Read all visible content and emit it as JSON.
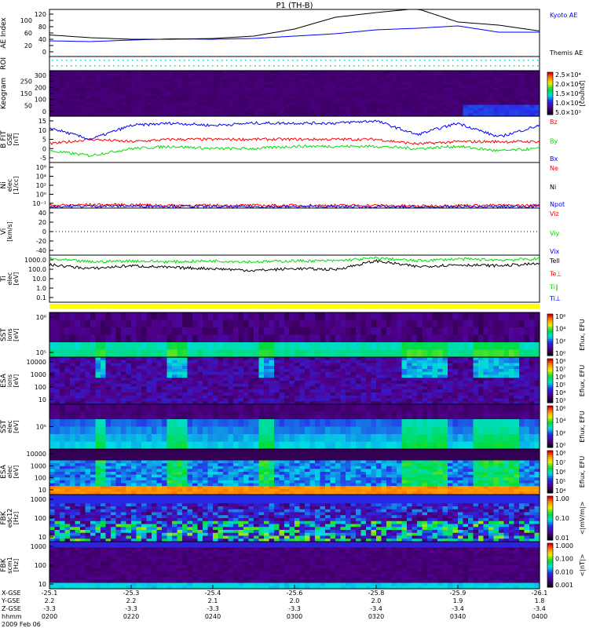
{
  "title": "P1 (TH-B)",
  "date": "2009 Feb 06",
  "colors": {
    "blue": "#0000ff",
    "red": "#ff0000",
    "green": "#00dd00",
    "black": "#000000",
    "cyan": "#00cccc",
    "yellow": "#ffff00"
  },
  "x_axis": {
    "rows": [
      {
        "label": "X-GSE",
        "values": [
          "-25.1",
          "-25.3",
          "-25.4",
          "-25.6",
          "-25.8",
          "-25.9",
          "-26.1"
        ]
      },
      {
        "label": "Y-GSE",
        "values": [
          "2.2",
          "2.2",
          "2.1",
          "2.0",
          "2.0",
          "1.9",
          "1.8"
        ]
      },
      {
        "label": "Z-GSE",
        "values": [
          "-3.3",
          "-3.3",
          "-3.3",
          "-3.3",
          "-3.4",
          "-3.4",
          "-3.4"
        ]
      },
      {
        "label": "hhmm",
        "values": [
          "0200",
          "0220",
          "0240",
          "0300",
          "0320",
          "0340",
          "0400"
        ]
      }
    ]
  },
  "chart_data": [
    {
      "type": "line",
      "id": "ae",
      "ylabel": [
        "AE Index"
      ],
      "ylim": [
        0,
        120
      ],
      "yticks": [
        "0",
        "20",
        "40",
        "60",
        "80",
        "100",
        "120"
      ],
      "x_minutes": [
        0,
        10,
        20,
        30,
        40,
        50,
        60,
        70,
        80,
        90,
        100,
        110,
        120
      ],
      "series": [
        {
          "name": "Kyoto AE",
          "color": "#0000ff",
          "values": [
            40,
            38,
            42,
            45,
            44,
            46,
            52,
            58,
            68,
            72,
            78,
            62,
            62
          ]
        },
        {
          "name": "Themis AE",
          "color": "#000000",
          "values": [
            55,
            48,
            44,
            44,
            46,
            52,
            70,
            100,
            112,
            122,
            88,
            80,
            65
          ]
        }
      ]
    },
    {
      "type": "line",
      "id": "roi",
      "ylabel": [
        "ROI"
      ],
      "ylim": [
        0,
        2
      ],
      "yticks": [],
      "series": []
    },
    {
      "type": "heatmap",
      "id": "keogram",
      "ylabel": [
        "Keogram"
      ],
      "ylim": [
        0,
        300
      ],
      "yticks": [
        "0",
        "50",
        "100",
        "150",
        "200",
        "250",
        "300"
      ],
      "colorbar": {
        "labels": [
          "2.5×10⁴",
          "2.0×10⁴",
          "1.5×10⁴",
          "1.0×10⁴",
          "5.0×10³"
        ],
        "title": "[counts]"
      }
    },
    {
      "type": "line",
      "id": "bfit",
      "ylabel": [
        "B FIT",
        "GSE",
        "[nT]"
      ],
      "ylim": [
        -5,
        15
      ],
      "yticks": [
        "-5",
        "0",
        "5",
        "10",
        "15"
      ],
      "x_minutes": [
        0,
        10,
        20,
        30,
        40,
        50,
        60,
        70,
        80,
        90,
        100,
        110,
        120
      ],
      "series": [
        {
          "name": "Bz",
          "color": "#ff0000",
          "values": [
            3,
            5,
            4,
            5,
            5,
            5,
            5,
            5,
            5,
            3,
            4,
            4,
            4
          ]
        },
        {
          "name": "By",
          "color": "#00dd00",
          "values": [
            0,
            -2,
            1,
            2,
            1,
            1,
            2,
            2,
            2,
            1,
            2,
            0,
            1
          ]
        },
        {
          "name": "Bx",
          "color": "#0000ff",
          "values": [
            10,
            5,
            11,
            12,
            11,
            12,
            12,
            12,
            13,
            7,
            12,
            6,
            11
          ]
        }
      ]
    },
    {
      "type": "line",
      "id": "ni",
      "ylabel": [
        "Ni",
        "elec",
        "[1/cc]"
      ],
      "ylim": [
        -1,
        6
      ],
      "yscale": "log",
      "yticks": [
        "10⁻¹",
        "10⁰",
        "10²",
        "10⁴",
        "10⁶"
      ],
      "x_minutes": [
        0,
        10,
        20,
        30,
        40,
        50,
        60,
        70,
        80,
        90,
        100,
        110,
        120
      ],
      "series": [
        {
          "name": "Ne",
          "color": "#ff0000",
          "values": [
            -0.6,
            -0.5,
            -0.5,
            -0.6,
            -0.6,
            -0.6,
            -0.6,
            -0.6,
            -0.6,
            -0.7,
            -0.6,
            -0.6,
            -0.6
          ]
        },
        {
          "name": "Ni",
          "color": "#000000",
          "values": []
        },
        {
          "name": "Npot",
          "color": "#0000ff",
          "values": [
            -0.8,
            -0.7,
            -0.7,
            -0.7,
            -0.8,
            -0.8,
            -0.8,
            -0.8,
            -0.8,
            -0.9,
            -0.8,
            -0.8,
            -0.7
          ]
        }
      ]
    },
    {
      "type": "line",
      "id": "vi",
      "ylabel": [
        "Vi",
        "[km/s]"
      ],
      "ylim": [
        -50,
        50
      ],
      "yticks": [
        "-40",
        "-20",
        "0",
        "20",
        "40"
      ],
      "series": [
        {
          "name": "Viz",
          "color": "#ff0000",
          "values": []
        },
        {
          "name": "Viy",
          "color": "#00dd00",
          "values": []
        },
        {
          "name": "Vix",
          "color": "#0000ff",
          "values": []
        }
      ]
    },
    {
      "type": "line",
      "id": "ti",
      "ylabel": [
        "Ti",
        "elec",
        "[eV]"
      ],
      "ylim": [
        -1.3,
        3.6
      ],
      "yscale": "log",
      "yticks": [
        "0.1",
        "1.0",
        "10.0",
        "100.0",
        "1000.0"
      ],
      "x_minutes": [
        0,
        10,
        20,
        30,
        40,
        50,
        60,
        70,
        80,
        90,
        100,
        110,
        120
      ],
      "series": [
        {
          "name": "Tell",
          "color": "#000000",
          "values": [
            2.6,
            2.2,
            2.5,
            2.3,
            2.2,
            2.0,
            2.2,
            2.1,
            3.0,
            2.4,
            2.6,
            2.5,
            2.7
          ]
        },
        {
          "name": "Te⊥",
          "color": "#ff0000",
          "values": []
        },
        {
          "name": "Ti∥",
          "color": "#00dd00",
          "values": [
            3.2,
            2.9,
            3.0,
            2.9,
            3.0,
            2.9,
            3.0,
            3.0,
            3.3,
            3.0,
            3.2,
            3.1,
            3.2
          ]
        },
        {
          "name": "Ti⊥",
          "color": "#0000ff",
          "values": []
        }
      ]
    },
    {
      "type": "heatmap",
      "id": "sst-ion",
      "ylabel": [
        "SST",
        "ions",
        "[eV]"
      ],
      "yticks": [
        "10⁵",
        "10⁶"
      ],
      "colorbar": {
        "labels": [
          "10⁶",
          "10⁴",
          "10²",
          "10⁰"
        ],
        "title": "Eflux, EFU"
      }
    },
    {
      "type": "heatmap",
      "id": "esa-ion",
      "ylabel": [
        "ESA",
        "ions",
        "[eV]"
      ],
      "yticks": [
        "10",
        "100",
        "1000",
        "10000"
      ],
      "colorbar": {
        "labels": [
          "10⁸",
          "10⁷",
          "10⁶",
          "10⁵",
          "10⁴",
          "10³"
        ],
        "title": "Eflux, EFU"
      }
    },
    {
      "type": "heatmap",
      "id": "sst-elec",
      "ylabel": [
        "SST",
        "elec",
        "[eV]"
      ],
      "yticks": [
        "10⁵"
      ],
      "colorbar": {
        "labels": [
          "10⁶",
          "10⁴",
          "10²",
          "10⁰"
        ],
        "title": "Eflux, EFU"
      }
    },
    {
      "type": "heatmap",
      "id": "esa-elec",
      "ylabel": [
        "ESA",
        "elec",
        "[eV]"
      ],
      "yticks": [
        "10",
        "100",
        "1000",
        "10000"
      ],
      "colorbar": {
        "labels": [
          "10⁸",
          "10⁷",
          "10⁶",
          "10⁵",
          "10⁴"
        ],
        "title": "Eflux, EFU"
      }
    },
    {
      "type": "heatmap",
      "id": "fbk-edc12",
      "ylabel": [
        "FBK",
        "edc12",
        "[Hz]"
      ],
      "yticks": [
        "10",
        "100",
        "1000"
      ],
      "colorbar": {
        "labels": [
          "1.00",
          "0.10",
          "0.01"
        ],
        "title": "<|mV/m|>"
      }
    },
    {
      "type": "heatmap",
      "id": "fbk-scm1",
      "ylabel": [
        "FBK",
        "scm1",
        "[Hz]"
      ],
      "yticks": [
        "10",
        "100",
        "1000"
      ],
      "colorbar": {
        "labels": [
          "1.000",
          "0.100",
          "0.010",
          "0.001"
        ],
        "title": "<|nT|>"
      }
    }
  ]
}
